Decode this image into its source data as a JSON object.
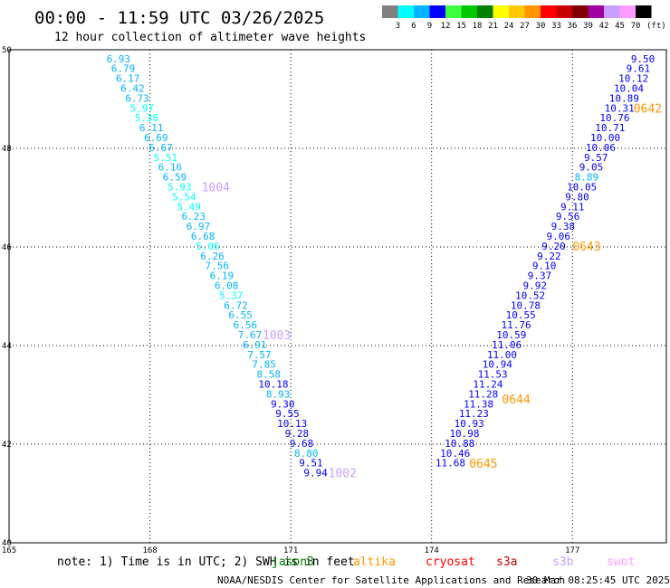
{
  "header": {
    "title": "00:00 - 11:59 UTC 03/26/2025",
    "subtitle": "12 hour collection of altimeter wave heights"
  },
  "colorbar": {
    "unit": "(ft)",
    "labels": [
      "3",
      "6",
      "9",
      "12",
      "15",
      "18",
      "21",
      "24",
      "27",
      "30",
      "33",
      "36",
      "39",
      "42",
      "45",
      "70"
    ],
    "colors": [
      "#808080",
      "#00ffff",
      "#00b4ff",
      "#0000ff",
      "#40ff40",
      "#00c800",
      "#008000",
      "#ffff00",
      "#ffc800",
      "#ff9600",
      "#ff0000",
      "#c80000",
      "#800000",
      "#a000a0",
      "#c8a0ff",
      "#ff9bff",
      "#000000"
    ]
  },
  "note": {
    "text": "note: 1) Time is in UTC; 2) SWH is in feet",
    "satellites": [
      {
        "name": "jason3",
        "color": "#008000"
      },
      {
        "name": "altika",
        "color": "#ff9600"
      },
      {
        "name": "cryosat",
        "color": "#ff0000"
      },
      {
        "name": "s3a",
        "color": "#c80000"
      },
      {
        "name": "s3b",
        "color": "#c8a0ff"
      },
      {
        "name": "swot",
        "color": "#ff9bff"
      }
    ]
  },
  "footer": {
    "credit": "NOAA/NESDIS Center for Satellite Applications and Research",
    "timestamp": "30 Mar 08:25:45 UTC 2025"
  },
  "chart_data": {
    "type": "scatter",
    "title": "00:00 - 11:59 UTC 03/26/2025",
    "xlim": [
      165,
      179
    ],
    "ylim": [
      40,
      50
    ],
    "x_ticks": [
      "165",
      "168",
      "171",
      "174",
      "177"
    ],
    "y_ticks": [
      "40",
      "42",
      "44",
      "46",
      "48",
      "50"
    ],
    "grid": true,
    "series": [
      {
        "name": "s3b",
        "points": [
          {
            "x": 167.33,
            "y": 49.82,
            "v": "6.93"
          },
          {
            "x": 167.43,
            "y": 49.62,
            "v": "6.79"
          },
          {
            "x": 167.53,
            "y": 49.42,
            "v": "6.17"
          },
          {
            "x": 167.63,
            "y": 49.22,
            "v": "6.42"
          },
          {
            "x": 167.73,
            "y": 49.02,
            "v": "6.73"
          },
          {
            "x": 167.83,
            "y": 48.82,
            "v": "5.97"
          },
          {
            "x": 167.93,
            "y": 48.62,
            "v": "5.38"
          },
          {
            "x": 168.03,
            "y": 48.42,
            "v": "6.11"
          },
          {
            "x": 168.13,
            "y": 48.22,
            "v": "6.69"
          },
          {
            "x": 168.23,
            "y": 48.02,
            "v": "6.67"
          },
          {
            "x": 168.33,
            "y": 47.82,
            "v": "5.51"
          },
          {
            "x": 168.43,
            "y": 47.62,
            "v": "6.16"
          },
          {
            "x": 168.53,
            "y": 47.42,
            "v": "6.59"
          },
          {
            "x": 168.63,
            "y": 47.22,
            "v": "5.93"
          },
          {
            "x": 168.73,
            "y": 47.02,
            "v": "5.54"
          },
          {
            "x": 168.83,
            "y": 46.82,
            "v": "5.49"
          },
          {
            "x": 168.93,
            "y": 46.62,
            "v": "6.23"
          },
          {
            "x": 169.03,
            "y": 46.42,
            "v": "6.97"
          },
          {
            "x": 169.13,
            "y": 46.22,
            "v": "6.68"
          },
          {
            "x": 169.23,
            "y": 46.02,
            "v": "5.06"
          },
          {
            "x": 169.33,
            "y": 45.82,
            "v": "6.26"
          },
          {
            "x": 169.43,
            "y": 45.62,
            "v": "7.56"
          },
          {
            "x": 169.53,
            "y": 45.42,
            "v": "6.19"
          },
          {
            "x": 169.63,
            "y": 45.22,
            "v": "6.08"
          },
          {
            "x": 169.73,
            "y": 45.02,
            "v": "5.37"
          },
          {
            "x": 169.83,
            "y": 44.82,
            "v": "6.72"
          },
          {
            "x": 169.93,
            "y": 44.62,
            "v": "6.55"
          },
          {
            "x": 170.03,
            "y": 44.42,
            "v": "6.56"
          },
          {
            "x": 170.13,
            "y": 44.22,
            "v": "7.67"
          },
          {
            "x": 170.23,
            "y": 44.02,
            "v": "6.91"
          },
          {
            "x": 170.33,
            "y": 43.82,
            "v": "7.57"
          },
          {
            "x": 170.43,
            "y": 43.62,
            "v": "7.85"
          },
          {
            "x": 170.53,
            "y": 43.42,
            "v": "8.58"
          },
          {
            "x": 170.63,
            "y": 43.22,
            "v": "10.18"
          },
          {
            "x": 170.73,
            "y": 43.02,
            "v": "8.93"
          },
          {
            "x": 170.83,
            "y": 42.82,
            "v": "9.30"
          },
          {
            "x": 170.93,
            "y": 42.62,
            "v": "9.55"
          },
          {
            "x": 171.03,
            "y": 42.42,
            "v": "10.13"
          },
          {
            "x": 171.13,
            "y": 42.22,
            "v": "9.28"
          },
          {
            "x": 171.23,
            "y": 42.02,
            "v": "9.68"
          },
          {
            "x": 171.33,
            "y": 41.82,
            "v": "8.80"
          },
          {
            "x": 171.43,
            "y": 41.62,
            "v": "9.51"
          },
          {
            "x": 171.53,
            "y": 41.42,
            "v": "9.94"
          }
        ]
      },
      {
        "name": "altika",
        "points": [
          {
            "x": 178.5,
            "y": 49.82,
            "v": "9.50"
          },
          {
            "x": 178.4,
            "y": 49.62,
            "v": "9.61"
          },
          {
            "x": 178.3,
            "y": 49.42,
            "v": "10.12"
          },
          {
            "x": 178.2,
            "y": 49.22,
            "v": "10.04"
          },
          {
            "x": 178.1,
            "y": 49.02,
            "v": "10.89"
          },
          {
            "x": 178.0,
            "y": 48.82,
            "v": "10.31"
          },
          {
            "x": 177.9,
            "y": 48.62,
            "v": "10.76"
          },
          {
            "x": 177.8,
            "y": 48.42,
            "v": "10.71"
          },
          {
            "x": 177.7,
            "y": 48.22,
            "v": "10.00"
          },
          {
            "x": 177.6,
            "y": 48.02,
            "v": "10.06"
          },
          {
            "x": 177.5,
            "y": 47.82,
            "v": "9.57"
          },
          {
            "x": 177.4,
            "y": 47.62,
            "v": "9.05"
          },
          {
            "x": 177.3,
            "y": 47.42,
            "v": "8.89"
          },
          {
            "x": 177.2,
            "y": 47.22,
            "v": "10.05"
          },
          {
            "x": 177.1,
            "y": 47.02,
            "v": "9.80"
          },
          {
            "x": 177.0,
            "y": 46.82,
            "v": "9.11"
          },
          {
            "x": 176.9,
            "y": 46.62,
            "v": "9.56"
          },
          {
            "x": 176.8,
            "y": 46.42,
            "v": "9.38"
          },
          {
            "x": 176.7,
            "y": 46.22,
            "v": "9.06"
          },
          {
            "x": 176.6,
            "y": 46.02,
            "v": "9.20"
          },
          {
            "x": 176.5,
            "y": 45.82,
            "v": "9.22"
          },
          {
            "x": 176.4,
            "y": 45.62,
            "v": "9.10"
          },
          {
            "x": 176.3,
            "y": 45.42,
            "v": "9.37"
          },
          {
            "x": 176.2,
            "y": 45.22,
            "v": "9.92"
          },
          {
            "x": 176.1,
            "y": 45.02,
            "v": "10.52"
          },
          {
            "x": 176.0,
            "y": 44.82,
            "v": "10.78"
          },
          {
            "x": 175.9,
            "y": 44.62,
            "v": "10.55"
          },
          {
            "x": 175.8,
            "y": 44.42,
            "v": "11.76"
          },
          {
            "x": 175.7,
            "y": 44.22,
            "v": "10.59"
          },
          {
            "x": 175.6,
            "y": 44.02,
            "v": "11.06"
          },
          {
            "x": 175.5,
            "y": 43.82,
            "v": "11.00"
          },
          {
            "x": 175.4,
            "y": 43.62,
            "v": "10.94"
          },
          {
            "x": 175.3,
            "y": 43.42,
            "v": "11.53"
          },
          {
            "x": 175.2,
            "y": 43.22,
            "v": "11.24"
          },
          {
            "x": 175.1,
            "y": 43.02,
            "v": "11.28"
          },
          {
            "x": 175.0,
            "y": 42.82,
            "v": "11.38"
          },
          {
            "x": 174.9,
            "y": 42.62,
            "v": "11.23"
          },
          {
            "x": 174.8,
            "y": 42.42,
            "v": "10.93"
          },
          {
            "x": 174.7,
            "y": 42.22,
            "v": "10.98"
          },
          {
            "x": 174.6,
            "y": 42.02,
            "v": "10.88"
          },
          {
            "x": 174.5,
            "y": 41.82,
            "v": "10.46"
          },
          {
            "x": 174.4,
            "y": 41.62,
            "v": "11.68"
          }
        ]
      }
    ],
    "cycle_labels": [
      {
        "text": "1004",
        "x": 169.1,
        "y": 47.2,
        "color": "#c8a0ff"
      },
      {
        "text": "1003",
        "x": 170.4,
        "y": 44.2,
        "color": "#c8a0ff"
      },
      {
        "text": "1002",
        "x": 171.8,
        "y": 41.4,
        "color": "#c8a0ff"
      },
      {
        "text": "0642",
        "x": 178.3,
        "y": 48.8,
        "color": "#ff9600"
      },
      {
        "text": "0643",
        "x": 177.0,
        "y": 46.0,
        "color": "#ff9600"
      },
      {
        "text": "0644",
        "x": 175.5,
        "y": 42.9,
        "color": "#ff9600"
      },
      {
        "text": "0645",
        "x": 174.8,
        "y": 41.6,
        "color": "#ff9600"
      }
    ]
  }
}
